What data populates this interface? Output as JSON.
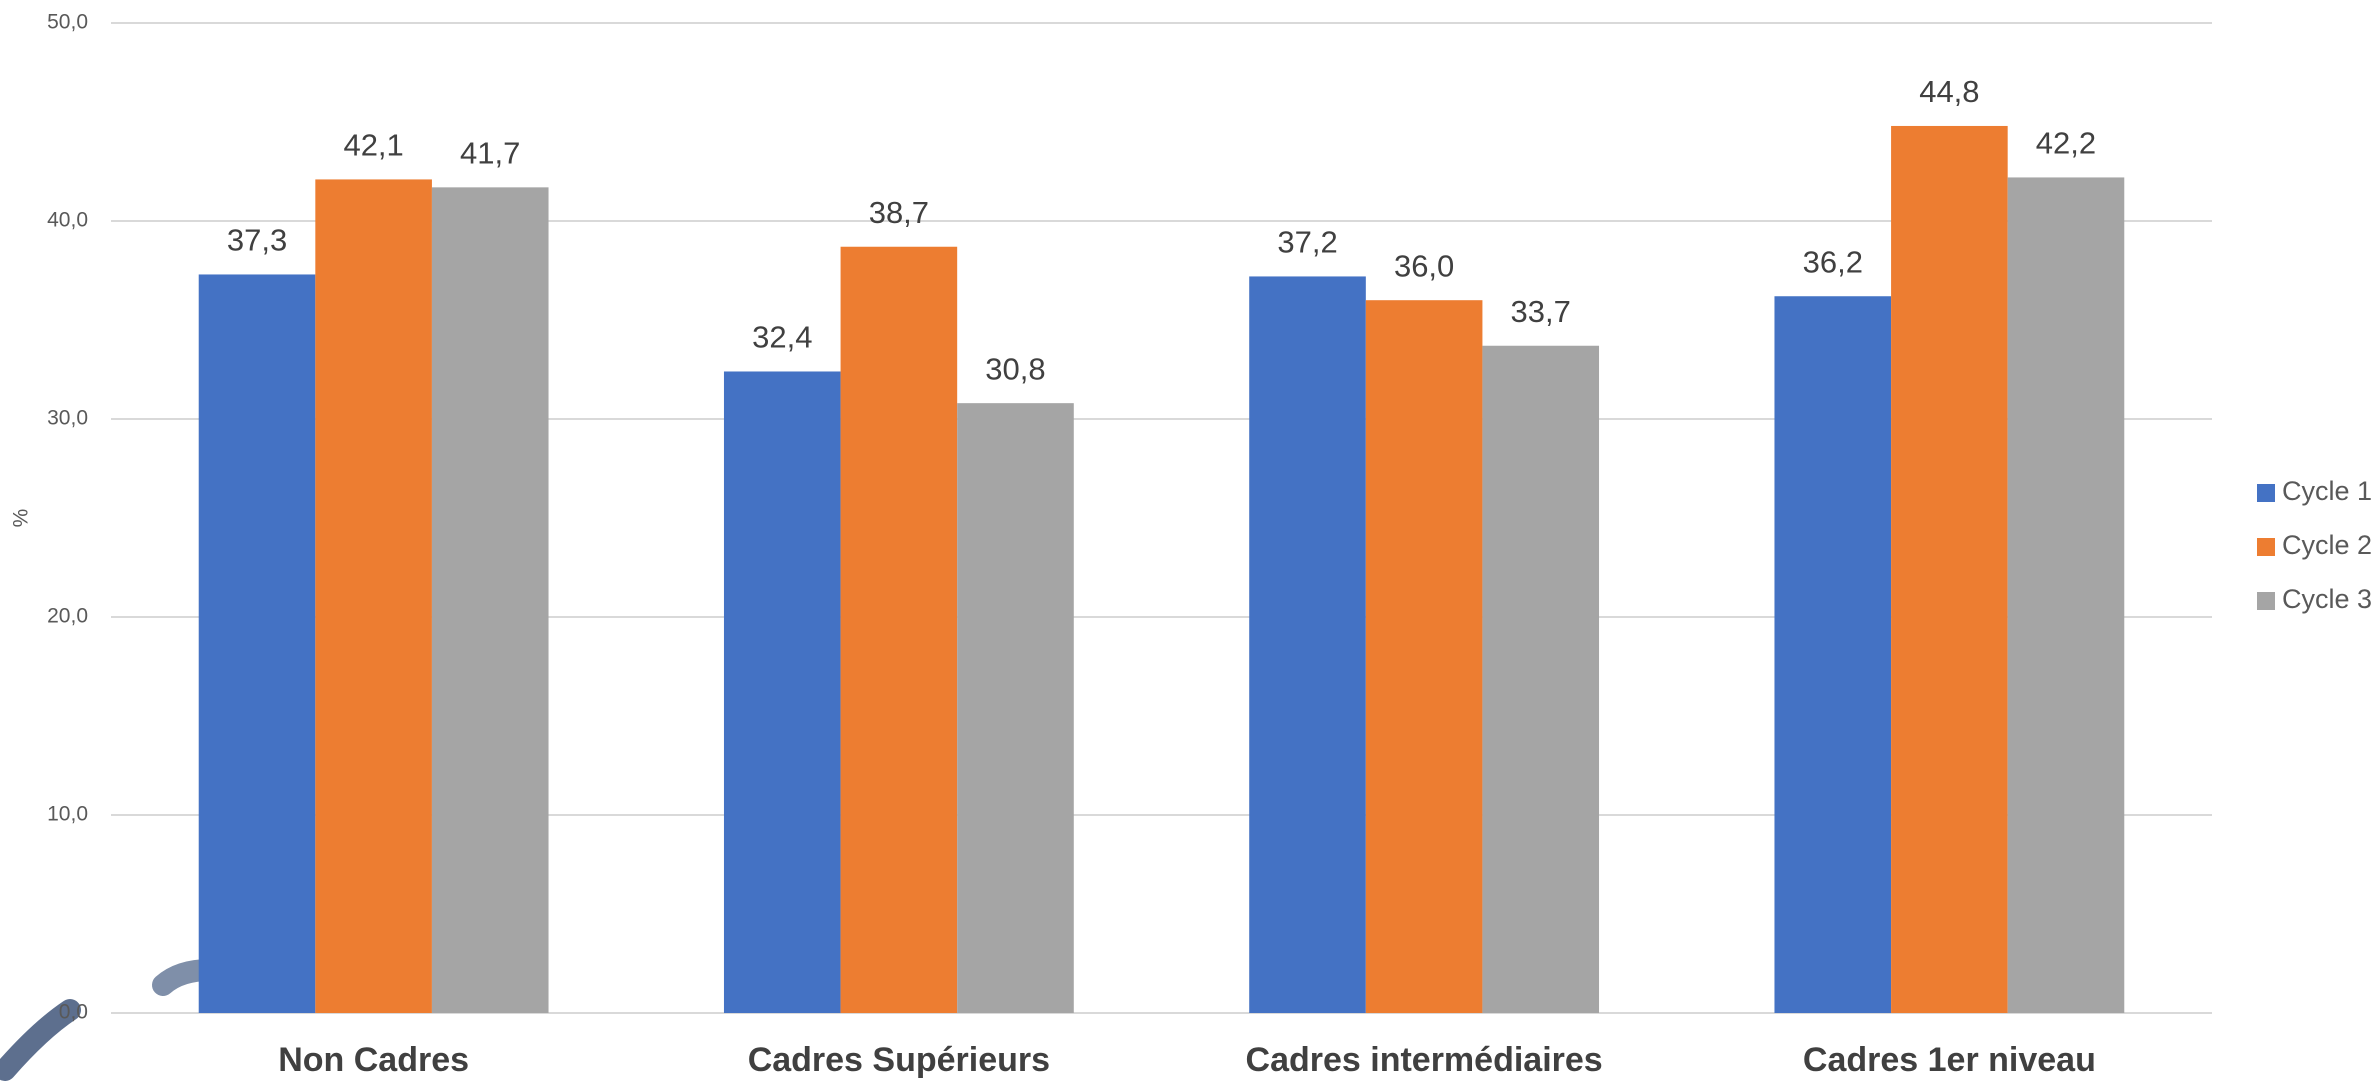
{
  "chart_data": {
    "type": "bar",
    "y_label": "%",
    "categories": [
      "Non Cadres",
      "Cadres Supérieurs",
      "Cadres intermédiaires",
      "Cadres 1er niveau"
    ],
    "series": [
      {
        "name": "Cycle 1",
        "color": "#4472c4",
        "values": [
          37.3,
          32.4,
          37.2,
          36.2
        ],
        "value_labels": [
          "37,3",
          "32,4",
          "37,2",
          "36,2"
        ]
      },
      {
        "name": "Cycle 2",
        "color": "#ed7d31",
        "values": [
          42.1,
          38.7,
          36.0,
          44.8
        ],
        "value_labels": [
          "42,1",
          "38,7",
          "36,0",
          "44,8"
        ]
      },
      {
        "name": "Cycle 3",
        "color": "#a5a5a5",
        "values": [
          41.7,
          30.8,
          33.7,
          42.2
        ],
        "value_labels": [
          "41,7",
          "30,8",
          "33,7",
          "42,2"
        ]
      }
    ],
    "ylim": [
      0,
      50
    ],
    "yticks": [
      {
        "value": 0,
        "label": "0,0"
      },
      {
        "value": 10,
        "label": "10,0"
      },
      {
        "value": 20,
        "label": "20,0"
      },
      {
        "value": 30,
        "label": "30,0"
      },
      {
        "value": 40,
        "label": "40,0"
      },
      {
        "value": 50,
        "label": "50,0"
      }
    ],
    "grid": true,
    "legend": "right"
  }
}
